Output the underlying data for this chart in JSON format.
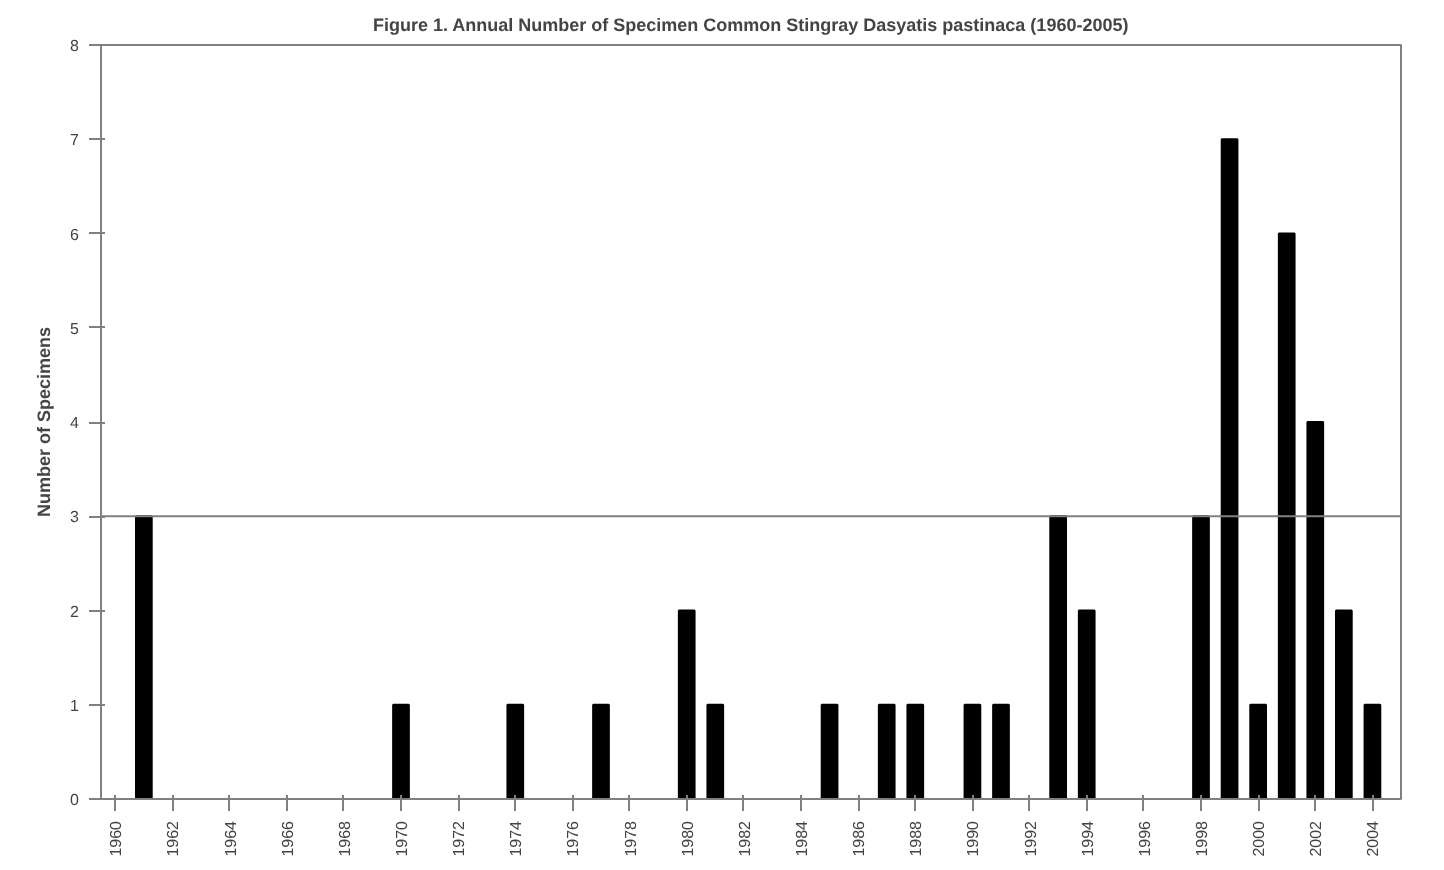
{
  "chart_data": {
    "type": "bar",
    "title": "Figure 1. Annual Number of Specimen Common Stingray Dasyatis pastinaca (1960-2005)",
    "ylabel": "Number of Specimens",
    "x": [
      1961,
      1970,
      1974,
      1977,
      1980,
      1981,
      1985,
      1987,
      1988,
      1990,
      1991,
      1993,
      1994,
      1998,
      1999,
      2000,
      2001,
      2002,
      2003,
      2004
    ],
    "values": [
      3,
      1,
      1,
      1,
      2,
      1,
      1,
      1,
      1,
      1,
      1,
      3,
      2,
      3,
      7,
      1,
      6,
      4,
      2,
      1
    ],
    "color": "#000000",
    "xlim": [
      1959.5,
      2005
    ],
    "xticks": [
      1960,
      1962,
      1964,
      1966,
      1968,
      1970,
      1972,
      1974,
      1976,
      1978,
      1980,
      1982,
      1984,
      1986,
      1988,
      1990,
      1992,
      1994,
      1996,
      1998,
      2000,
      2002,
      2004
    ],
    "ylim": [
      0,
      8
    ],
    "yticks": [
      0,
      1,
      2,
      3,
      4,
      5,
      6,
      7,
      8
    ],
    "ref_lines": [
      {
        "axis": "y",
        "value": 3,
        "color": "#808080"
      }
    ],
    "grid": false
  }
}
